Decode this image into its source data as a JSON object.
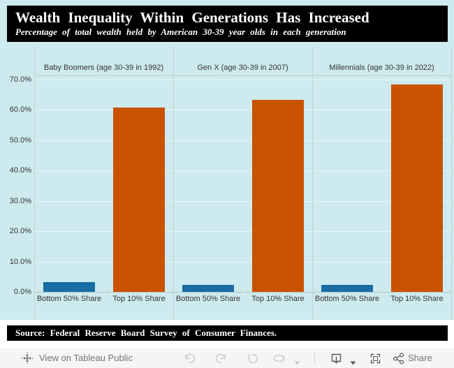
{
  "title_bar": {
    "title": "Wealth Inequality Within Generations Has Increased",
    "subtitle": "Percentage of total wealth held by American 30-39 year olds in each generation"
  },
  "source_bar": {
    "text": "Source: Federal Reserve Board Survey of Consumer Finances."
  },
  "toolbar": {
    "view_label": "View on Tableau Public",
    "share_label": "Share",
    "icons": {
      "tableau-logo": "plus-burst",
      "undo-icon": "curved-arrow-left",
      "redo-icon": "curved-arrow-right",
      "reset-icon": "revert-arrow",
      "refresh-icon": "oval-arrow",
      "caret-icon": "triangle-down",
      "download-icon": "screen-with-down-arrow",
      "fullscreen-icon": "corner-brackets",
      "share-icon": "connected-nodes"
    }
  },
  "chart_data": {
    "type": "bar",
    "title": "Wealth Inequality Within Generations Has Increased",
    "subtitle": "Percentage of total wealth held by American 30-39 year olds in each generation",
    "categories": [
      "Bottom 50% Share",
      "Top 10% Share"
    ],
    "panels": [
      {
        "label": "Baby Boomers (age 30-39 in 1992)",
        "values": [
          3.3,
          60.7
        ]
      },
      {
        "label": "Gen X (age 30-39 in 2007)",
        "values": [
          2.3,
          63.3
        ]
      },
      {
        "label": "Millennials (age 30-39 in 2022)",
        "values": [
          2.3,
          68.4
        ]
      }
    ],
    "bar_colors": [
      "#176da4",
      "#c85200"
    ],
    "y_tick_labels": [
      "0.0%",
      "10.0%",
      "20.0%",
      "30.0%",
      "40.0%",
      "50.0%",
      "60.0%",
      "70.0%"
    ],
    "y_ticks": [
      0,
      10,
      20,
      30,
      40,
      50,
      60,
      70
    ],
    "ylim": [
      0,
      70
    ],
    "grid": true,
    "legend": "none",
    "background": "#cdeaee"
  }
}
